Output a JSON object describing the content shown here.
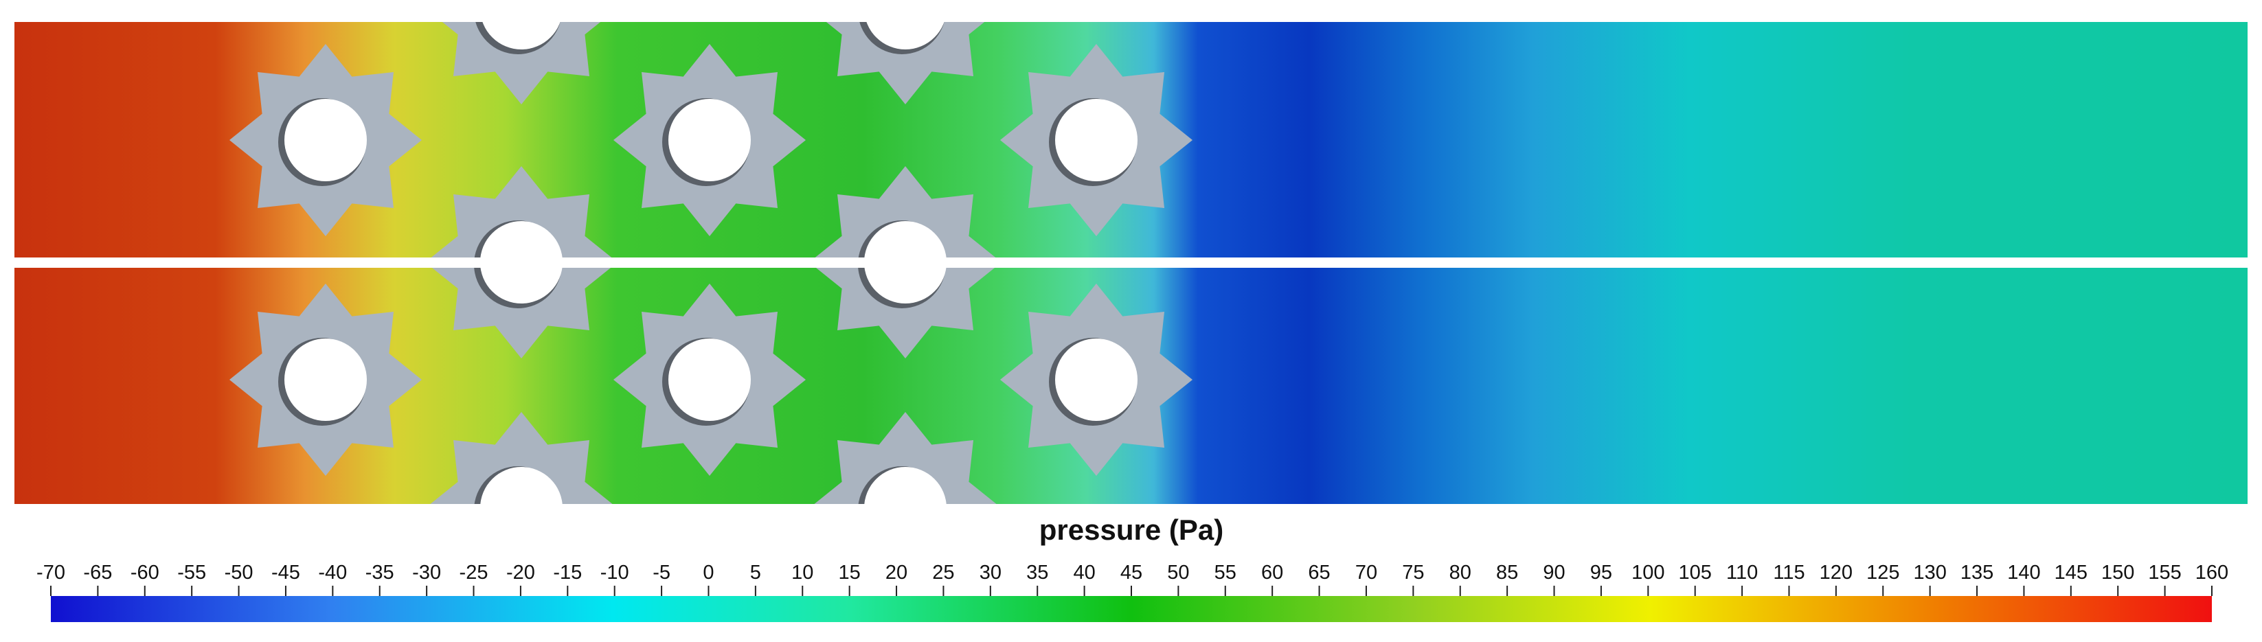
{
  "colorbar": {
    "title": "pressure (Pa)",
    "lim": [
      -70,
      160
    ],
    "ticks": [
      -70,
      -65,
      -60,
      -55,
      -50,
      -45,
      -40,
      -35,
      -30,
      -25,
      -20,
      -15,
      -10,
      -5,
      0,
      5,
      10,
      15,
      20,
      25,
      30,
      35,
      40,
      45,
      50,
      55,
      60,
      65,
      70,
      75,
      80,
      85,
      90,
      95,
      100,
      105,
      110,
      115,
      120,
      125,
      130,
      135,
      140,
      145,
      150,
      155,
      160
    ]
  }
}
